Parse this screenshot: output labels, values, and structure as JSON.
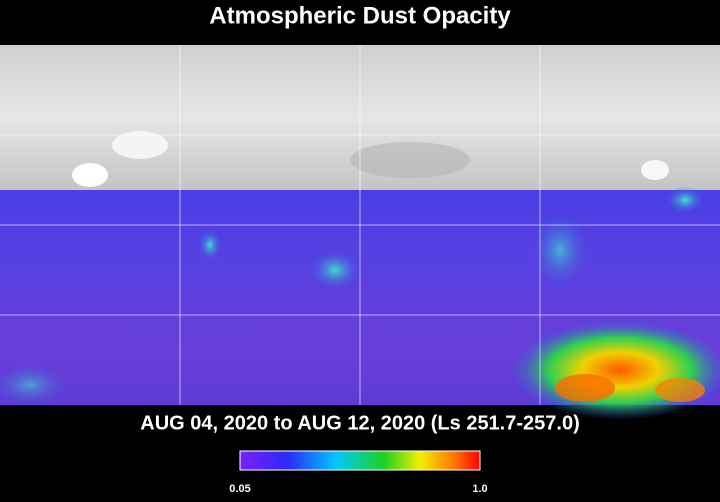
{
  "title": "Atmospheric Dust Opacity",
  "subtitle": "AUG 04, 2020 to AUG 12, 2020 (Ls 251.7-257.0)",
  "colorbar": {
    "min_label": "0.05",
    "max_label": "1.0"
  }
}
